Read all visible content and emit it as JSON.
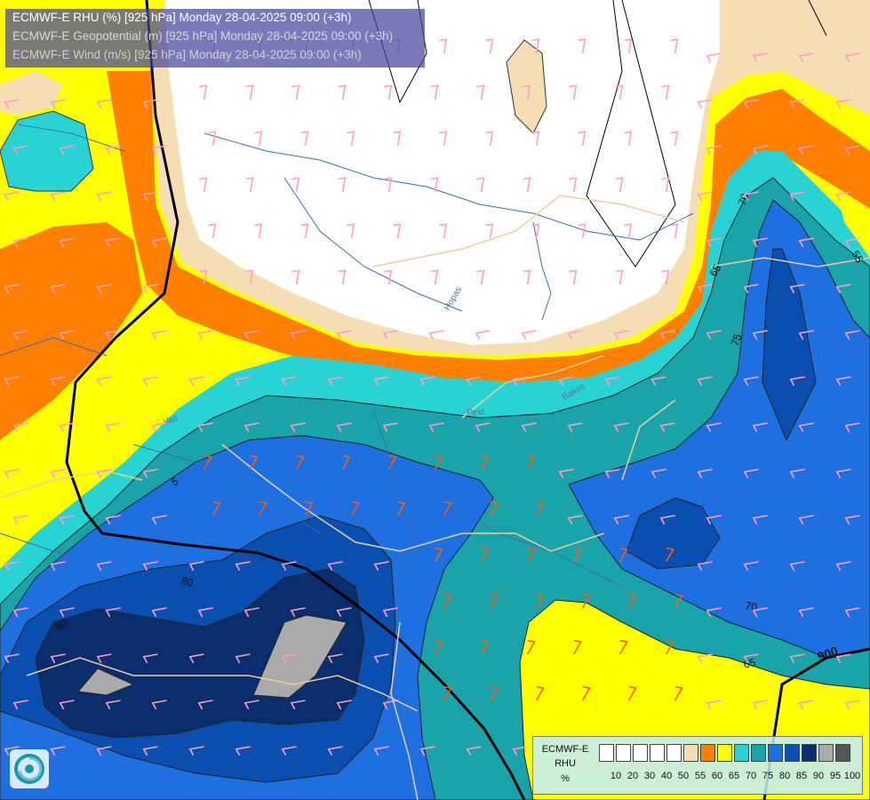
{
  "titles": {
    "line1": "ECMWF-E RHU (%) [925 hPa] Monday 28-04-2025 09:00 (+3h)",
    "line2": "ECMWF-E Geopotential (m) [925 hPa] Monday 28-04-2025 09:00 (+3h)",
    "line3": "ECMWF-E Wind (m/s) [925 hPa] Monday 28-04-2025 09:00 (+3h)"
  },
  "legend": {
    "label1": "ECMWF-E",
    "label2": "RHU",
    "label3": "%",
    "ticks": [
      "10",
      "20",
      "30",
      "40",
      "50",
      "55",
      "60",
      "65",
      "70",
      "75",
      "80",
      "85",
      "90",
      "95",
      "100"
    ],
    "colors": [
      "#ffffff",
      "#ffffff",
      "#ffffff",
      "#ffffff",
      "#ffffff",
      "#f5deb3",
      "#ff8000",
      "#ffff00",
      "#2ad3d3",
      "#1aa3a8",
      "#1e6fe0",
      "#0a4fb0",
      "#0a2d6e",
      "#aaaaaa",
      "#555555"
    ]
  },
  "contour_labels": {
    "c70a": "70",
    "c65a": "65",
    "c75": "75",
    "c55": "55",
    "c80": "80",
    "c85": "85",
    "c70b": "70",
    "c65b": "65",
    "c5": "5",
    "c900": "900"
  },
  "place_labels": {
    "p1": "Hopas",
    "p2": "Bakos",
    "p3": "Vas",
    "p4": "Pest"
  },
  "colors": {
    "rh_white": "#ffffff",
    "rh_55": "#f5deb3",
    "rh_60": "#ff8000",
    "rh_65": "#ffff00",
    "rh_70": "#2ad3d3",
    "rh_75": "#1aa3a8",
    "rh_80": "#1e6fe0",
    "rh_85": "#0a4fb0",
    "rh_90": "#0a2d6e",
    "rh_95": "#aaaaaa",
    "wind_barb_pink": "#ff9fc0",
    "wind_barb_orange": "#ff5a14",
    "title_box": "#4646a0"
  },
  "icons": {
    "logo": "ecmwf-swirl-logo",
    "wind": "wind-barb-icon"
  }
}
